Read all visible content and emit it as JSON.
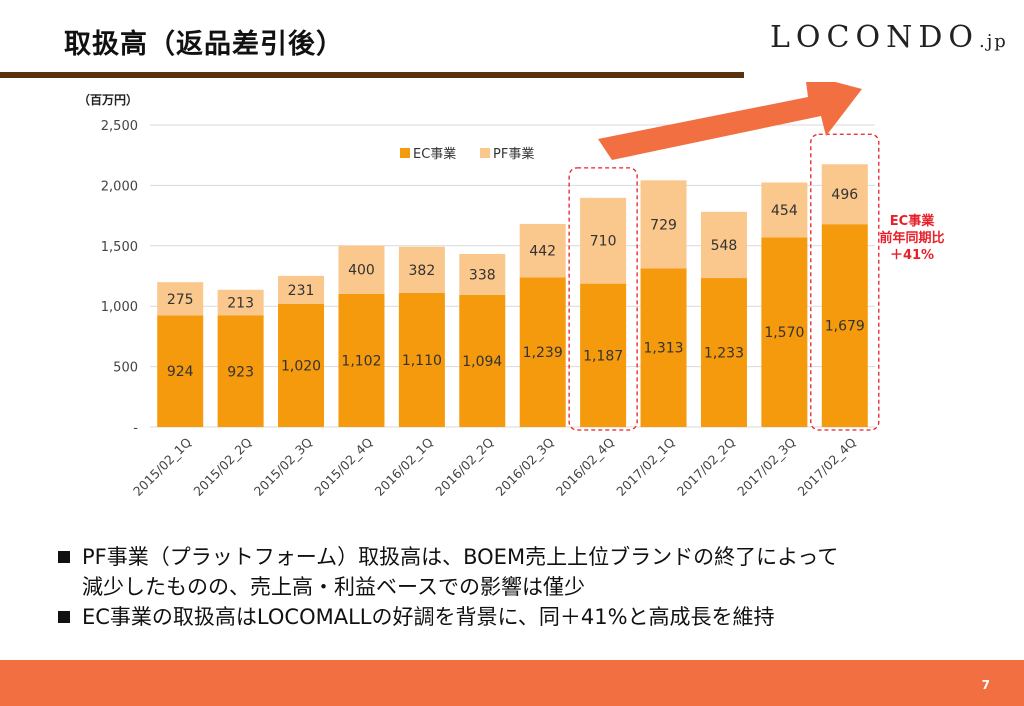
{
  "slide": {
    "title": "取扱高（返品差引後）",
    "logo_main": "LOCONDO",
    "logo_suffix": ".jp",
    "page_number": "7"
  },
  "chart_data": {
    "type": "bar",
    "stacked": true,
    "unit_label": "（百万円）",
    "categories": [
      "2015/02_1Q",
      "2015/02_2Q",
      "2015/02_3Q",
      "2015/02_4Q",
      "2016/02_1Q",
      "2016/02_2Q",
      "2016/02_3Q",
      "2016/02_4Q",
      "2017/02_1Q",
      "2017/02_2Q",
      "2017/02_3Q",
      "2017/02_4Q"
    ],
    "series": [
      {
        "name": "EC事業",
        "color": "#f59a0c",
        "values": [
          924,
          923,
          1020,
          1102,
          1110,
          1094,
          1239,
          1187,
          1313,
          1233,
          1570,
          1679
        ],
        "labels": [
          "924",
          "923",
          "1,020",
          "1,102",
          "1,110",
          "1,094",
          "1,239",
          "1,187",
          "1,313",
          "1,233",
          "1,570",
          "1,679"
        ]
      },
      {
        "name": "PF事業",
        "color": "#fac78c",
        "values": [
          275,
          213,
          231,
          400,
          382,
          338,
          442,
          710,
          729,
          548,
          454,
          496
        ],
        "labels": [
          "275",
          "213",
          "231",
          "400",
          "382",
          "338",
          "442",
          "710",
          "729",
          "548",
          "454",
          "496"
        ]
      }
    ],
    "ylim": [
      0,
      2500
    ],
    "yticks": [
      0,
      500,
      1000,
      1500,
      2000,
      2500
    ],
    "ytick_labels": [
      "-",
      "500",
      "1,000",
      "1,500",
      "2,000",
      "2,500"
    ],
    "legend_position": "top-center",
    "highlighted_categories": [
      "2016/02_4Q",
      "2017/02_4Q"
    ],
    "annotation": {
      "lines": [
        "EC事業",
        "前年同期比",
        "＋41%"
      ],
      "color": "#e8202a"
    },
    "trend_arrow": {
      "color": "#f26f42"
    }
  },
  "bullets": [
    "PF事業（プラットフォーム）取扱高は、BOEM売上上位ブランドの終了によって\n減少したものの、売上高・利益ベースでの影響は僅少",
    "EC事業の取扱高はLOCOMALLの好調を背景に、同＋41%と高成長を維持"
  ]
}
